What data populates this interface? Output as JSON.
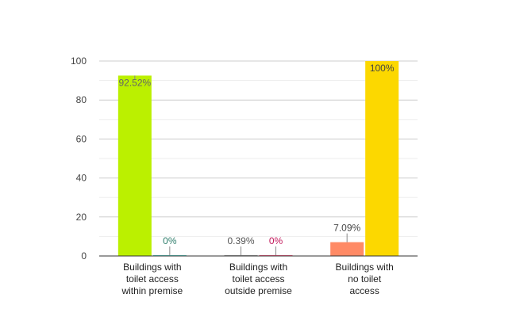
{
  "chart_data": {
    "type": "bar",
    "categories": [
      [
        "Buildings with",
        "toilet access",
        "within premise"
      ],
      [
        "Buildings with",
        "toilet access",
        "outside premise"
      ],
      [
        "Buildings with",
        "no toilet",
        "access"
      ]
    ],
    "series": [
      {
        "values": [
          92.52,
          0.39,
          7.09
        ],
        "labels": [
          "92.52%",
          "0.39%",
          "7.09%"
        ],
        "colors": [
          "#bbf000",
          "#9a9a9a",
          "#ff8a65"
        ]
      },
      {
        "values": [
          0,
          0,
          100
        ],
        "labels": [
          "0%",
          "0%",
          "100%"
        ],
        "colors": [
          "#4dd0c4",
          "#ff4f7b",
          "#fcd800"
        ]
      }
    ],
    "label_colors": [
      [
        "#666666",
        "#555555",
        "#444444"
      ],
      [
        "#2e7d6b",
        "#c2185b",
        "#444444"
      ]
    ],
    "yticks": [
      0,
      20,
      40,
      60,
      80,
      100
    ],
    "ylim": [
      0,
      100
    ],
    "grid": true
  }
}
